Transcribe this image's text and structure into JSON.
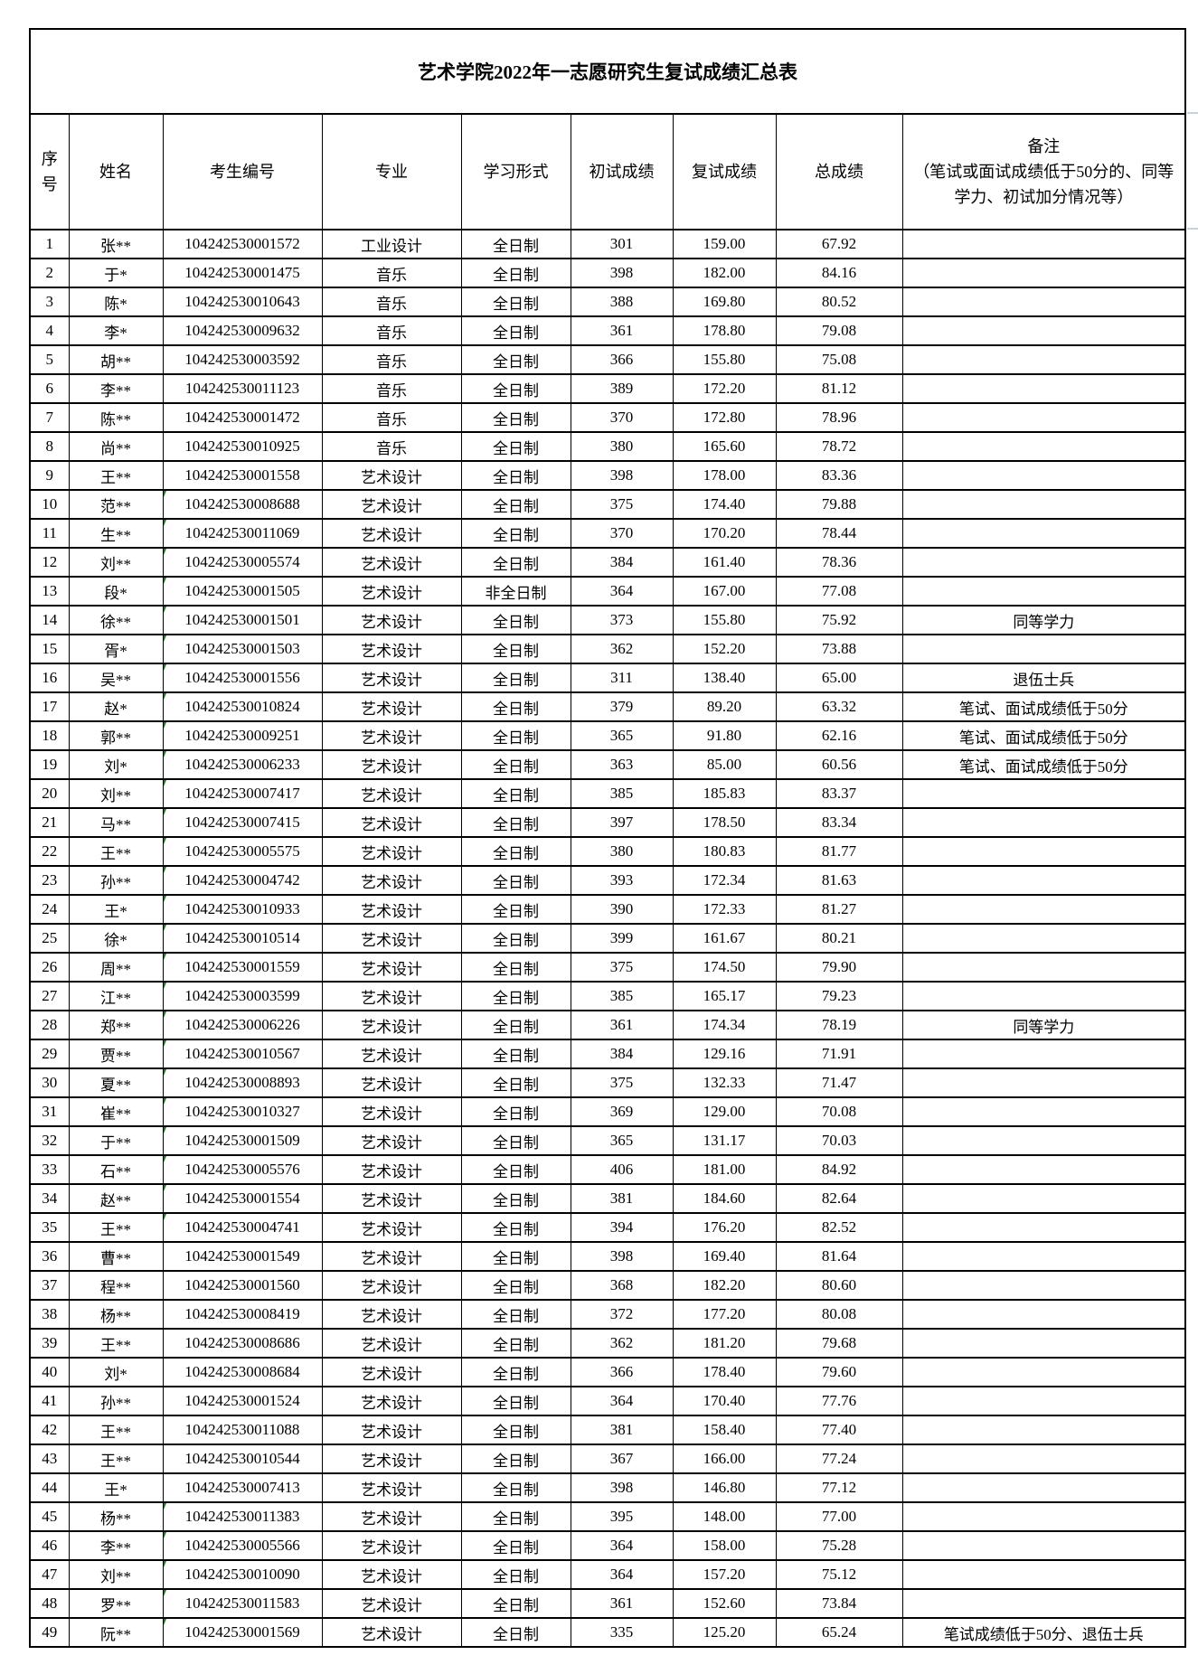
{
  "title": "艺术学院2022年一志愿研究生复试成绩汇总表",
  "headers": {
    "seq": "序号",
    "name": "姓名",
    "id": "考生编号",
    "major": "专业",
    "mode": "学习形式",
    "initial": "初试成绩",
    "retest": "复试成绩",
    "total": "总成绩",
    "remark_title": "备注",
    "remark_sub": "（笔试或面试成绩低于50分的、同等学力、初试加分情况等）"
  },
  "marker_color": "#1a8a1a",
  "rows": [
    [
      "1",
      "张**",
      "104242530001572",
      "工业设计",
      "全日制",
      "301",
      "159.00",
      "67.92",
      ""
    ],
    [
      "2",
      "于*",
      "104242530001475",
      "音乐",
      "全日制",
      "398",
      "182.00",
      "84.16",
      ""
    ],
    [
      "3",
      "陈*",
      "104242530010643",
      "音乐",
      "全日制",
      "388",
      "169.80",
      "80.52",
      ""
    ],
    [
      "4",
      "李*",
      "104242530009632",
      "音乐",
      "全日制",
      "361",
      "178.80",
      "79.08",
      ""
    ],
    [
      "5",
      "胡**",
      "104242530003592",
      "音乐",
      "全日制",
      "366",
      "155.80",
      "75.08",
      ""
    ],
    [
      "6",
      "李**",
      "104242530011123",
      "音乐",
      "全日制",
      "389",
      "172.20",
      "81.12",
      ""
    ],
    [
      "7",
      "陈**",
      "104242530001472",
      "音乐",
      "全日制",
      "370",
      "172.80",
      "78.96",
      ""
    ],
    [
      "8",
      "尚**",
      "104242530010925",
      "音乐",
      "全日制",
      "380",
      "165.60",
      "78.72",
      ""
    ],
    [
      "9",
      "王**",
      "104242530001558",
      "艺术设计",
      "全日制",
      "398",
      "178.00",
      "83.36",
      ""
    ],
    [
      "10",
      "范**",
      "104242530008688",
      "艺术设计",
      "全日制",
      "375",
      "174.40",
      "79.88",
      ""
    ],
    [
      "11",
      "生**",
      "104242530011069",
      "艺术设计",
      "全日制",
      "370",
      "170.20",
      "78.44",
      ""
    ],
    [
      "12",
      "刘**",
      "104242530005574",
      "艺术设计",
      "全日制",
      "384",
      "161.40",
      "78.36",
      ""
    ],
    [
      "13",
      "段*",
      "104242530001505",
      "艺术设计",
      "非全日制",
      "364",
      "167.00",
      "77.08",
      ""
    ],
    [
      "14",
      "徐**",
      "104242530001501",
      "艺术设计",
      "全日制",
      "373",
      "155.80",
      "75.92",
      "同等学力"
    ],
    [
      "15",
      "胥*",
      "104242530001503",
      "艺术设计",
      "全日制",
      "362",
      "152.20",
      "73.88",
      ""
    ],
    [
      "16",
      "吴**",
      "104242530001556",
      "艺术设计",
      "全日制",
      "311",
      "138.40",
      "65.00",
      "退伍士兵"
    ],
    [
      "17",
      "赵*",
      "104242530010824",
      "艺术设计",
      "全日制",
      "379",
      "89.20",
      "63.32",
      "笔试、面试成绩低于50分"
    ],
    [
      "18",
      "郭**",
      "104242530009251",
      "艺术设计",
      "全日制",
      "365",
      "91.80",
      "62.16",
      "笔试、面试成绩低于50分"
    ],
    [
      "19",
      "刘*",
      "104242530006233",
      "艺术设计",
      "全日制",
      "363",
      "85.00",
      "60.56",
      "笔试、面试成绩低于50分"
    ],
    [
      "20",
      "刘**",
      "104242530007417",
      "艺术设计",
      "全日制",
      "385",
      "185.83",
      "83.37",
      ""
    ],
    [
      "21",
      "马**",
      "104242530007415",
      "艺术设计",
      "全日制",
      "397",
      "178.50",
      "83.34",
      ""
    ],
    [
      "22",
      "王**",
      "104242530005575",
      "艺术设计",
      "全日制",
      "380",
      "180.83",
      "81.77",
      ""
    ],
    [
      "23",
      "孙**",
      "104242530004742",
      "艺术设计",
      "全日制",
      "393",
      "172.34",
      "81.63",
      ""
    ],
    [
      "24",
      "王*",
      "104242530010933",
      "艺术设计",
      "全日制",
      "390",
      "172.33",
      "81.27",
      ""
    ],
    [
      "25",
      "徐*",
      "104242530010514",
      "艺术设计",
      "全日制",
      "399",
      "161.67",
      "80.21",
      ""
    ],
    [
      "26",
      "周**",
      "104242530001559",
      "艺术设计",
      "全日制",
      "375",
      "174.50",
      "79.90",
      ""
    ],
    [
      "27",
      "江**",
      "104242530003599",
      "艺术设计",
      "全日制",
      "385",
      "165.17",
      "79.23",
      ""
    ],
    [
      "28",
      "郑**",
      "104242530006226",
      "艺术设计",
      "全日制",
      "361",
      "174.34",
      "78.19",
      "同等学力"
    ],
    [
      "29",
      "贾**",
      "104242530010567",
      "艺术设计",
      "全日制",
      "384",
      "129.16",
      "71.91",
      ""
    ],
    [
      "30",
      "夏**",
      "104242530008893",
      "艺术设计",
      "全日制",
      "375",
      "132.33",
      "71.47",
      ""
    ],
    [
      "31",
      "崔**",
      "104242530010327",
      "艺术设计",
      "全日制",
      "369",
      "129.00",
      "70.08",
      ""
    ],
    [
      "32",
      "于**",
      "104242530001509",
      "艺术设计",
      "全日制",
      "365",
      "131.17",
      "70.03",
      ""
    ],
    [
      "33",
      "石**",
      "104242530005576",
      "艺术设计",
      "全日制",
      "406",
      "181.00",
      "84.92",
      ""
    ],
    [
      "34",
      "赵**",
      "104242530001554",
      "艺术设计",
      "全日制",
      "381",
      "184.60",
      "82.64",
      ""
    ],
    [
      "35",
      "王**",
      "104242530004741",
      "艺术设计",
      "全日制",
      "394",
      "176.20",
      "82.52",
      ""
    ],
    [
      "36",
      "曹**",
      "104242530001549",
      "艺术设计",
      "全日制",
      "398",
      "169.40",
      "81.64",
      ""
    ],
    [
      "37",
      "程**",
      "104242530001560",
      "艺术设计",
      "全日制",
      "368",
      "182.20",
      "80.60",
      ""
    ],
    [
      "38",
      "杨**",
      "104242530008419",
      "艺术设计",
      "全日制",
      "372",
      "177.20",
      "80.08",
      ""
    ],
    [
      "39",
      "王**",
      "104242530008686",
      "艺术设计",
      "全日制",
      "362",
      "181.20",
      "79.68",
      ""
    ],
    [
      "40",
      "刘*",
      "104242530008684",
      "艺术设计",
      "全日制",
      "366",
      "178.40",
      "79.60",
      ""
    ],
    [
      "41",
      "孙**",
      "104242530001524",
      "艺术设计",
      "全日制",
      "364",
      "170.40",
      "77.76",
      ""
    ],
    [
      "42",
      "王**",
      "104242530011088",
      "艺术设计",
      "全日制",
      "381",
      "158.40",
      "77.40",
      ""
    ],
    [
      "43",
      "王**",
      "104242530010544",
      "艺术设计",
      "全日制",
      "367",
      "166.00",
      "77.24",
      ""
    ],
    [
      "44",
      "王*",
      "104242530007413",
      "艺术设计",
      "全日制",
      "398",
      "146.80",
      "77.12",
      ""
    ],
    [
      "45",
      "杨**",
      "104242530011383",
      "艺术设计",
      "全日制",
      "395",
      "148.00",
      "77.00",
      ""
    ],
    [
      "46",
      "李**",
      "104242530005566",
      "艺术设计",
      "全日制",
      "364",
      "158.00",
      "75.28",
      ""
    ],
    [
      "47",
      "刘**",
      "104242530010090",
      "艺术设计",
      "全日制",
      "364",
      "157.20",
      "75.12",
      ""
    ],
    [
      "48",
      "罗**",
      "104242530011583",
      "艺术设计",
      "全日制",
      "361",
      "152.60",
      "73.84",
      ""
    ],
    [
      "49",
      "阮**",
      "104242530001569",
      "艺术设计",
      "全日制",
      "335",
      "125.20",
      "65.24",
      "笔试成绩低于50分、退伍士兵"
    ]
  ]
}
